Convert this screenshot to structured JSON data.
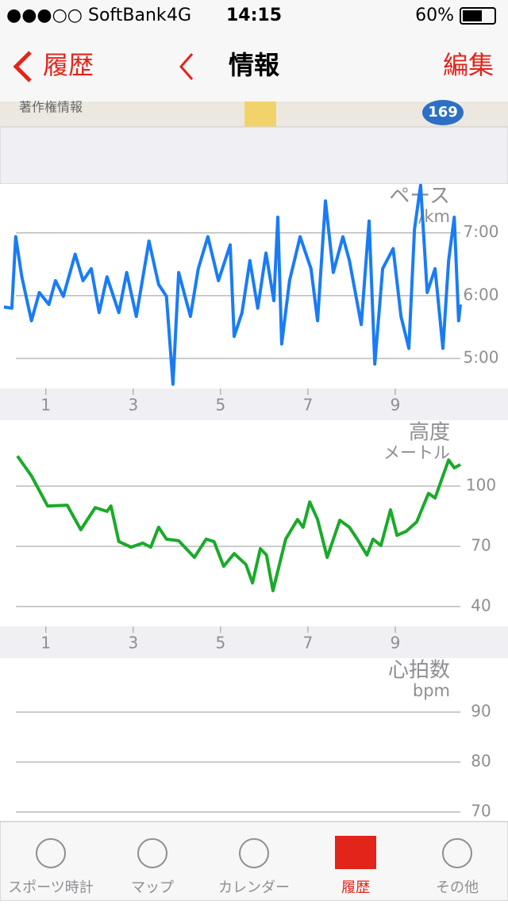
{
  "status_bar": {
    "carrier": "●●●○○ SoftBank",
    "network": "4G",
    "time": "14:15",
    "battery": "60%"
  },
  "nav": {
    "back": "履歴",
    "title": "情報",
    "edit": "編集"
  },
  "map": {
    "copyright": "著作権情報",
    "route": "169"
  },
  "chart_data": [
    {
      "type": "line",
      "title": "ペース",
      "unit": "/km",
      "color": "#1a7cf5",
      "x": [
        0.04,
        0.22,
        0.31,
        0.45,
        0.67,
        0.85,
        1.07,
        1.22,
        1.4,
        1.67,
        1.85,
        2.04,
        2.22,
        2.4,
        2.67,
        2.85,
        3.07,
        3.36,
        3.58,
        3.76,
        3.91,
        4.04,
        4.31,
        4.49,
        4.71,
        4.95,
        5.22,
        5.31,
        5.49,
        5.67,
        5.85,
        6.04,
        6.22,
        6.31,
        6.4,
        6.58,
        6.82,
        7.07,
        7.22,
        7.4,
        7.58,
        7.8,
        7.95,
        8.22,
        8.4,
        8.53,
        8.71,
        8.95,
        9.13,
        9.31,
        9.44,
        9.58,
        9.73,
        9.91,
        10.09,
        10.22,
        10.35,
        10.45,
        10.49
      ],
      "values": [
        5.82,
        5.8,
        6.94,
        6.3,
        5.6,
        6.05,
        5.86,
        6.24,
        5.99,
        6.66,
        6.24,
        6.43,
        5.73,
        6.3,
        5.73,
        6.37,
        5.67,
        6.87,
        6.18,
        5.99,
        4.59,
        6.37,
        5.67,
        6.43,
        6.94,
        6.24,
        6.81,
        5.35,
        5.73,
        6.56,
        5.8,
        6.68,
        5.92,
        7.25,
        5.23,
        6.24,
        6.94,
        6.43,
        5.6,
        7.51,
        6.37,
        6.94,
        6.56,
        5.54,
        7.19,
        4.91,
        6.43,
        6.75,
        5.67,
        5.16,
        7.06,
        7.76,
        6.05,
        6.43,
        5.16,
        6.56,
        7.25,
        5.6,
        5.86
      ],
      "xlim": [
        -0.05,
        11.58
      ],
      "xticks": [
        1,
        3,
        5,
        7,
        9
      ],
      "ylim": [
        4.52,
        7.78
      ],
      "yticks": [
        {
          "value": 7,
          "label": "7:00"
        },
        {
          "value": 6,
          "label": "6:00"
        },
        {
          "value": 5,
          "label": "5:00"
        }
      ],
      "grid": true
    },
    {
      "type": "line",
      "title": "高度",
      "unit": "メートル",
      "color": "#1aaa2a",
      "x": [
        0.35,
        0.67,
        1.04,
        1.49,
        1.8,
        2.13,
        2.4,
        2.49,
        2.67,
        2.95,
        3.22,
        3.4,
        3.58,
        3.76,
        4.04,
        4.4,
        4.67,
        4.85,
        5.07,
        5.31,
        5.58,
        5.73,
        5.91,
        6.05,
        6.2,
        6.49,
        6.76,
        6.89,
        7.04,
        7.22,
        7.44,
        7.73,
        7.95,
        8.13,
        8.35,
        8.49,
        8.67,
        8.89,
        9.04,
        9.25,
        9.49,
        9.76,
        9.91,
        10.22,
        10.35,
        10.49
      ],
      "values": [
        115,
        105.1,
        90.1,
        90.5,
        78.3,
        89.3,
        87.4,
        90.1,
        72.4,
        69.6,
        71.6,
        69.6,
        79.5,
        73.6,
        72.8,
        64.5,
        73.6,
        72.4,
        60.1,
        66.4,
        61,
        51.8,
        68.8,
        65.7,
        47.9,
        73.6,
        83.4,
        79.5,
        92.1,
        83.4,
        64.5,
        83,
        79.5,
        73.6,
        65.7,
        73.6,
        70.4,
        88.2,
        75.5,
        77.5,
        82.2,
        96.4,
        94.1,
        113,
        109.1,
        110.7
      ],
      "xlim": [
        -0.05,
        11.58
      ],
      "xticks": [
        1,
        3,
        5,
        7,
        9
      ],
      "ylim": [
        30.1,
        132.8
      ],
      "yticks": [
        100,
        70,
        40
      ],
      "grid": true
    },
    {
      "type": "line",
      "title": "心拍数",
      "unit": "bpm",
      "ylim": [
        68.1,
        100.8
      ],
      "yticks": [
        90,
        80,
        70
      ],
      "grid": true
    }
  ],
  "tab_bar": {
    "items": [
      "スポーツ時計",
      "マップ",
      "カレンダー",
      "履歴",
      "その他"
    ],
    "active": 3
  }
}
